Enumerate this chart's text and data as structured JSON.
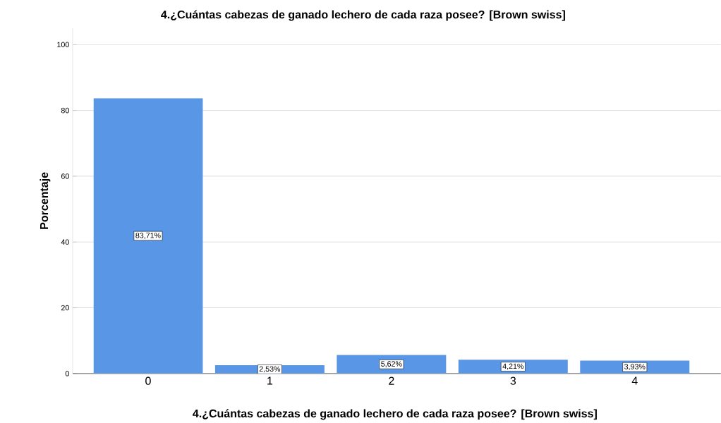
{
  "chart_data": {
    "type": "bar",
    "title": "4.¿Cuántas cabezas de ganado lechero de cada raza posee? [Brown swiss]",
    "xlabel": "4.¿Cuántas cabezas de ganado lechero de cada raza posee? [Brown swiss]",
    "ylabel": "Porcentaje",
    "categories": [
      "0",
      "1",
      "2",
      "3",
      "4"
    ],
    "values": [
      83.71,
      2.53,
      5.62,
      4.21,
      3.93
    ],
    "value_labels": [
      "83,71%",
      "2,53%",
      "5,62%",
      "4,21%",
      "3,93%"
    ],
    "color": "#5a96e6",
    "ylim": [
      0,
      105
    ],
    "yticks": [
      0,
      20,
      40,
      60,
      80,
      100
    ],
    "grid": "y"
  }
}
